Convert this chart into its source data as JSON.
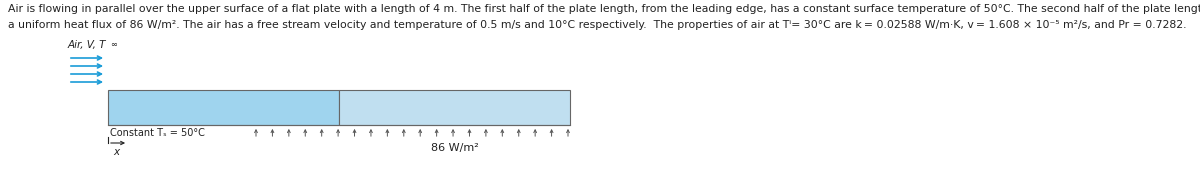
{
  "background_color": "#ffffff",
  "line1": "Air is flowing in parallel over the upper surface of a flat plate with a length of 4 m. The first half of the plate length, from the leading edge, has a constant surface temperature of 50°C. The second half of the plate length is subjected to",
  "line2": "a uniform heat flux of 86 W/m². The air has a free stream velocity and temperature of 0.5 m/s and 10°C respectively.  The properties of air at Tⁱ= 30°C are k = 0.02588 W/m·K, v = 1.608 × 10⁻⁵ m²/s, and Pr = 0.7282.",
  "title_fontsize": 7.8,
  "left_color": "#9fd4ee",
  "right_color": "#c0dff0",
  "plate_edge_color": "#666666",
  "arrow_color": "#1a9cd8",
  "text_color": "#222222",
  "tick_color": "#555555",
  "label_air": "Air, V, T",
  "label_const_T": "Constant Tₛ = 50°C",
  "label_heat_flux": "86 W/m²",
  "label_x": "x",
  "tick_count": 20
}
